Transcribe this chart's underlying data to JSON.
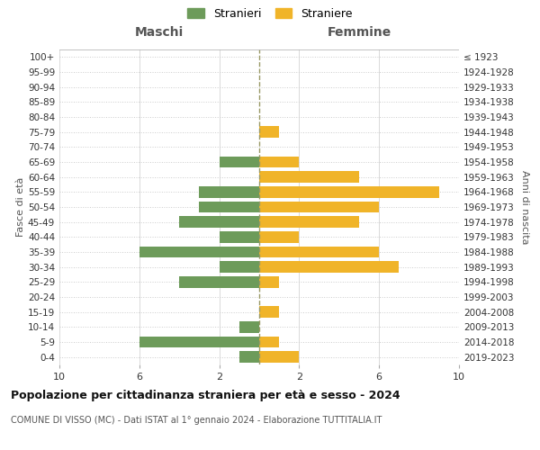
{
  "age_groups": [
    "0-4",
    "5-9",
    "10-14",
    "15-19",
    "20-24",
    "25-29",
    "30-34",
    "35-39",
    "40-44",
    "45-49",
    "50-54",
    "55-59",
    "60-64",
    "65-69",
    "70-74",
    "75-79",
    "80-84",
    "85-89",
    "90-94",
    "95-99",
    "100+"
  ],
  "birth_years": [
    "2019-2023",
    "2014-2018",
    "2009-2013",
    "2004-2008",
    "1999-2003",
    "1994-1998",
    "1989-1993",
    "1984-1988",
    "1979-1983",
    "1974-1978",
    "1969-1973",
    "1964-1968",
    "1959-1963",
    "1954-1958",
    "1949-1953",
    "1944-1948",
    "1939-1943",
    "1934-1938",
    "1929-1933",
    "1924-1928",
    "≤ 1923"
  ],
  "males": [
    1,
    6,
    1,
    0,
    0,
    4,
    2,
    6,
    2,
    4,
    3,
    3,
    0,
    2,
    0,
    0,
    0,
    0,
    0,
    0,
    0
  ],
  "females": [
    2,
    1,
    0,
    1,
    0,
    1,
    7,
    6,
    2,
    5,
    6,
    9,
    5,
    2,
    0,
    1,
    0,
    0,
    0,
    0,
    0
  ],
  "male_color": "#6d9b5a",
  "female_color": "#f0b429",
  "center_line_color": "#999966",
  "grid_color": "#cccccc",
  "title": "Popolazione per cittadinanza straniera per età e sesso - 2024",
  "subtitle": "COMUNE DI VISSO (MC) - Dati ISTAT al 1° gennaio 2024 - Elaborazione TUTTITALIA.IT",
  "xlabel_left": "Maschi",
  "xlabel_right": "Femmine",
  "ylabel_left": "Fasce di età",
  "ylabel_right": "Anni di nascita",
  "legend_male": "Stranieri",
  "legend_female": "Straniere",
  "xlim": 10,
  "background_color": "#ffffff",
  "bar_height": 0.75
}
